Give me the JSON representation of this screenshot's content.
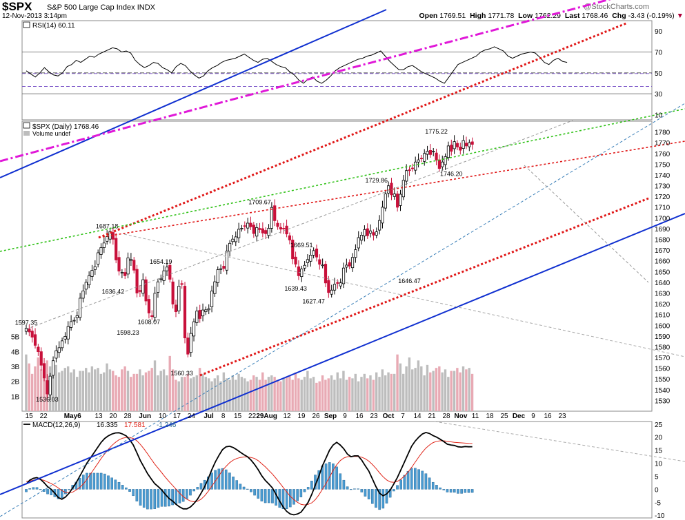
{
  "header": {
    "ticker": "$SPX",
    "name": "S&P 500 Large Cap Index",
    "exchange": "INDX",
    "date": "12-Nov-2013 3:14pm",
    "open_label": "Open",
    "open": "1769.51",
    "high_label": "High",
    "high": "1771.78",
    "low_label": "Low",
    "low": "1762.29",
    "last_label": "Last",
    "last": "1768.46",
    "chg_label": "Chg",
    "chg": "-3.43 (-0.19%)",
    "logo": "@StockCharts.com"
  },
  "chart_data": [
    {
      "type": "line",
      "panel": "rsi",
      "legend": "RSI(14) 60.11",
      "ylim": [
        5,
        100
      ],
      "yticks": [
        10,
        30,
        50,
        70,
        90
      ],
      "ref_lines": [
        30,
        50,
        70
      ],
      "x_index_range": [
        0,
        125
      ],
      "series": [
        {
          "values": [
            52,
            49,
            46,
            50,
            55,
            51,
            48,
            47,
            50,
            56,
            58,
            62,
            60,
            63,
            66,
            65,
            68,
            70,
            72,
            74,
            73,
            70,
            71,
            69,
            62,
            58,
            55,
            57,
            60,
            59,
            55,
            53,
            50,
            56,
            59,
            57,
            52,
            48,
            45,
            47,
            52,
            55,
            57,
            60,
            62,
            63,
            64,
            66,
            68,
            65,
            62,
            60,
            63,
            64,
            61,
            58,
            56,
            55,
            51,
            48,
            43,
            40,
            44,
            46,
            42,
            40,
            43,
            47,
            52,
            55,
            57,
            59,
            61,
            63,
            64,
            66,
            67,
            69,
            71,
            66,
            61,
            57,
            53,
            53,
            56,
            57,
            54,
            51,
            49,
            47,
            45,
            42,
            40,
            46,
            52,
            58,
            60,
            62,
            64,
            66,
            70,
            72,
            73,
            75,
            73,
            71,
            66,
            64,
            66,
            68,
            69,
            70,
            69,
            65,
            60,
            58,
            62,
            64,
            61,
            60
          ]
        }
      ]
    },
    {
      "type": "candlestick",
      "panel": "price",
      "legend": "$SPX (Daily) 1768.46",
      "legend2": "Volume undef",
      "ylim": [
        1520,
        1790
      ],
      "yticks": [
        1530,
        1540,
        1550,
        1560,
        1570,
        1580,
        1590,
        1600,
        1610,
        1620,
        1630,
        1640,
        1650,
        1660,
        1670,
        1680,
        1690,
        1700,
        1710,
        1720,
        1730,
        1740,
        1750,
        1760,
        1770,
        1780
      ],
      "x_index_range": [
        0,
        125
      ],
      "closes": [
        1597.35,
        1593.8,
        1588.9,
        1581.3,
        1575.4,
        1562.8,
        1550.9,
        1536.0,
        1552.6,
        1567.0,
        1576.3,
        1579.1,
        1585.5,
        1589.6,
        1598.8,
        1603.4,
        1604.6,
        1608.9,
        1625.2,
        1632.0,
        1640.0,
        1646.2,
        1651.1,
        1654.5,
        1667.5,
        1672.3,
        1676.6,
        1682.6,
        1687.2,
        1680.1,
        1660.8,
        1650.4,
        1649.2,
        1646.1,
        1662.7,
        1661.4,
        1651.3,
        1630.0,
        1631.4,
        1642.4,
        1622.6,
        1611.4,
        1608.1,
        1629.8,
        1640.4,
        1643.2,
        1650.7,
        1654.2,
        1642.8,
        1619.7,
        1612.6,
        1636.4,
        1638.0,
        1588.2,
        1573.1,
        1592.4,
        1603.3,
        1613.2,
        1606.3,
        1614.2,
        1614.4,
        1615.5,
        1631.9,
        1640.5,
        1651.8,
        1652.6,
        1652.9,
        1669.0,
        1676.3,
        1680.2,
        1682.3,
        1689.4,
        1690.3,
        1692.1,
        1695.1,
        1691.7,
        1685.4,
        1691.0,
        1689.1,
        1685.9,
        1685.3,
        1690.3,
        1709.7,
        1697.4,
        1691.9,
        1689.5,
        1690.0,
        1685.0,
        1679.4,
        1661.9,
        1656.9,
        1646.1,
        1652.4,
        1655.8,
        1661.2,
        1665.3,
        1669.5,
        1663.5,
        1656.8,
        1656.1,
        1639.4,
        1630.5,
        1632.7,
        1638.2,
        1639.0,
        1639.5,
        1653.3,
        1656.0,
        1655.2,
        1663.2,
        1670.4,
        1681.6,
        1683.9,
        1689.1,
        1683.4,
        1687.9,
        1683.9,
        1687.0,
        1697.6,
        1709.9,
        1722.3,
        1729.9,
        1721.5,
        1722.3,
        1709.9
      ],
      "x_labels": [
        {
          "i": 1,
          "t": "15"
        },
        {
          "i": 6,
          "t": "22"
        },
        {
          "i": 16,
          "t": "May6"
        },
        {
          "i": 25,
          "t": "13"
        },
        {
          "i": 30,
          "t": "20"
        },
        {
          "i": 35,
          "t": "28"
        },
        {
          "i": 41,
          "t": "Jun"
        },
        {
          "i": 47,
          "t": "10"
        },
        {
          "i": 52,
          "t": "17"
        },
        {
          "i": 57,
          "t": "24"
        },
        {
          "i": 63,
          "t": "Jul"
        },
        {
          "i": 68,
          "t": "8"
        },
        {
          "i": 73,
          "t": "15"
        },
        {
          "i": 78,
          "t": "22"
        },
        {
          "i": 83,
          "t": "29Aug"
        },
        {
          "i": 90,
          "t": "12"
        },
        {
          "i": 95,
          "t": "19"
        },
        {
          "i": 100,
          "t": "26"
        },
        {
          "i": 105,
          "t": "Sep"
        },
        {
          "i": 110,
          "t": "9"
        },
        {
          "i": 115,
          "t": "16"
        },
        {
          "i": 120,
          "t": "23"
        },
        {
          "i": 125,
          "t": "Oct"
        },
        {
          "i": 130,
          "t": "7"
        },
        {
          "i": 135,
          "t": "14"
        },
        {
          "i": 140,
          "t": "21"
        },
        {
          "i": 145,
          "t": "28"
        },
        {
          "i": 150,
          "t": "Nov"
        },
        {
          "i": 155,
          "t": "11"
        },
        {
          "i": 160,
          "t": "18"
        },
        {
          "i": 165,
          "t": "25"
        },
        {
          "i": 170,
          "t": "Dec"
        },
        {
          "i": 175,
          "t": "9"
        },
        {
          "i": 180,
          "t": "16"
        },
        {
          "i": 185,
          "t": "23"
        }
      ],
      "annotations": [
        {
          "i": 0,
          "v": 1597.35,
          "t": "1597.35"
        },
        {
          "i": 7,
          "v": 1536.03,
          "t": "1536.03"
        },
        {
          "i": 28,
          "v": 1687.18,
          "t": "1687.18"
        },
        {
          "i": 30,
          "v": 1636.42,
          "t": "1636.42"
        },
        {
          "i": 36,
          "v": 1598.23,
          "t": "1598.23"
        },
        {
          "i": 43,
          "v": 1608.07,
          "t": "1608.07"
        },
        {
          "i": 47,
          "v": 1654.19,
          "t": "1654.19"
        },
        {
          "i": 54,
          "v": 1560.33,
          "t": "1560.33"
        },
        {
          "i": 82,
          "v": 1709.67,
          "t": "1709.67"
        },
        {
          "i": 96,
          "v": 1669.51,
          "t": "1669.51"
        },
        {
          "i": 94,
          "v": 1639.43,
          "t": "1639.43"
        },
        {
          "i": 101,
          "v": 1627.47,
          "t": "1627.47"
        },
        {
          "i": 122,
          "v": 1729.86,
          "t": "1729.86"
        },
        {
          "i": 134,
          "v": 1646.47,
          "t": "1646.47"
        },
        {
          "i": 143,
          "v": 1775.22,
          "t": "1775.22"
        },
        {
          "i": 149,
          "v": 1746.2,
          "t": "1746.20"
        }
      ]
    },
    {
      "type": "bar",
      "panel": "volume",
      "yticks_labels": [
        "1B",
        "2B",
        "3B",
        "4B",
        "5B"
      ],
      "yticks": [
        1,
        2,
        3,
        4,
        5
      ],
      "values": [
        3.8,
        3.2,
        2.5,
        3.0,
        3.6,
        2.8,
        2.9,
        3.4,
        3.0,
        2.4,
        3.1,
        2.6,
        2.7,
        2.9,
        3.0,
        2.6,
        2.8,
        2.3,
        2.7,
        2.7,
        2.9,
        2.6,
        3.0,
        2.8,
        2.9,
        2.5,
        2.6,
        3.2,
        2.8,
        2.7,
        2.4,
        2.3,
        2.8,
        3.0,
        2.7,
        2.3,
        2.5,
        2.5,
        2.8,
        2.4,
        2.6,
        2.7,
        2.9,
        3.4,
        2.4,
        2.7,
        2.8,
        2.4,
        3.7,
        2.8,
        2.1,
        2.0,
        2.3,
        2.3,
        2.5,
        2.2,
        2.3,
        2.4,
        2.9,
        2.5,
        2.3,
        2.2,
        2.0,
        2.2,
        2.4,
        2.0,
        2.6,
        2.2,
        2.1,
        2.4,
        2.1,
        2.5,
        2.3,
        2.2,
        2.0,
        2.1,
        2.4,
        2.3,
        2.1,
        2.6,
        2.1,
        2.3,
        2.4,
        2.3,
        2.1,
        2.0,
        2.2,
        2.3,
        2.4,
        2.1,
        2.6,
        2.2,
        2.1,
        2.3,
        2.7,
        2.2,
        2.3,
        1.9,
        2.0,
        2.4,
        2.1,
        2.2,
        2.4,
        2.1,
        2.6,
        2.2,
        2.7,
        2.1,
        2.3,
        2.2,
        2.5,
        2.0,
        2.3,
        2.5,
        2.2,
        2.4,
        2.1,
        2.6,
        2.3,
        2.8,
        2.4,
        2.6,
        2.5,
        2.5
      ]
    },
    {
      "type": "line",
      "panel": "macd",
      "legend_name": "MACD(12,26,9)",
      "legend_macd": "16.335",
      "legend_signal": "17.581",
      "legend_hist": "-1.246",
      "ylim": [
        -11,
        26
      ],
      "yticks": [
        -10,
        -5,
        0,
        5,
        10,
        15,
        20,
        25
      ],
      "x_index_range": [
        0,
        125
      ],
      "macd": [
        2,
        3.5,
        4.2,
        4.5,
        3.8,
        2.5,
        1,
        0,
        -1.5,
        -3.2,
        -3.8,
        -3,
        -1.5,
        0.5,
        2.5,
        5,
        7.5,
        10,
        12,
        14,
        16,
        18,
        19.5,
        20.5,
        21.2,
        21.6,
        21.7,
        21.2,
        20.5,
        19,
        17,
        14,
        11,
        8.5,
        6,
        4,
        2.2,
        1,
        -0.3,
        -2,
        -3.5,
        -4.5,
        -5.8,
        -6.8,
        -7.5,
        -7.5,
        -6.8,
        -5.5,
        -3.8,
        -1.5,
        1,
        4,
        7.5,
        10.5,
        13,
        15.2,
        16.3,
        16.5,
        16,
        15.2,
        14.2,
        13.3,
        12.5,
        11.2,
        9.5,
        7.5,
        5.2,
        3.4,
        2,
        0.5,
        -2,
        -4.5,
        -6.8,
        -8.5,
        -9.5,
        -9.8,
        -9.5,
        -8.8,
        -7,
        -5,
        -2,
        1.5,
        5,
        9,
        12,
        15,
        17,
        18,
        17,
        15.5,
        13.5,
        12.5,
        12.8,
        12.8,
        11.2,
        9,
        7,
        4,
        1,
        -1.5,
        -2.5,
        -1.8,
        -0.3,
        2,
        4.5,
        7.5,
        10.5,
        13.5,
        16.5,
        18.5,
        20,
        21.2,
        21.8,
        21.4,
        20.6,
        20,
        19.2,
        18.3,
        17.3,
        17.0,
        16.8,
        16.3,
        16.2,
        16.4,
        16.3,
        16.335
      ],
      "signal": [
        3,
        3.2,
        3.5,
        3.8,
        3.8,
        3.4,
        2.8,
        2.2,
        1.4,
        0.5,
        -0.5,
        -1.2,
        -1.3,
        -1.1,
        -0.3,
        0.7,
        2,
        3.8,
        5.8,
        7.8,
        9.8,
        11.8,
        13.6,
        15.3,
        16.8,
        18,
        19,
        19.6,
        19.9,
        19.9,
        19.5,
        18.6,
        17.2,
        15.5,
        13.6,
        11.6,
        9.7,
        8,
        6.3,
        4.6,
        3,
        1.5,
        0,
        -1.5,
        -2.8,
        -3.8,
        -4.5,
        -4.8,
        -4.6,
        -3.8,
        -2.5,
        -0.8,
        1.2,
        3.2,
        5.2,
        7.2,
        8.8,
        10.2,
        11.2,
        11.8,
        12.2,
        12.4,
        12.4,
        12.2,
        11.8,
        11,
        9.8,
        8.6,
        7.2,
        5.8,
        4.2,
        2.5,
        0.7,
        -1,
        -2.7,
        -4,
        -5,
        -5.8,
        -6,
        -5.8,
        -5.2,
        -4,
        -2.2,
        0,
        2.2,
        4.7,
        7.2,
        9.4,
        11,
        12,
        12.5,
        12.6,
        12.6,
        12.6,
        12.3,
        11.7,
        10.8,
        9.5,
        8,
        6.3,
        4.8,
        3.6,
        2.8,
        2.7,
        3,
        3.9,
        5.1,
        6.6,
        8.4,
        10.4,
        12.4,
        14.2,
        15.8,
        17,
        17.9,
        18.4,
        18.6,
        18.6,
        18.4,
        18.2,
        18,
        17.9,
        17.8,
        17.7,
        17.6,
        17.581
      ]
    }
  ]
}
